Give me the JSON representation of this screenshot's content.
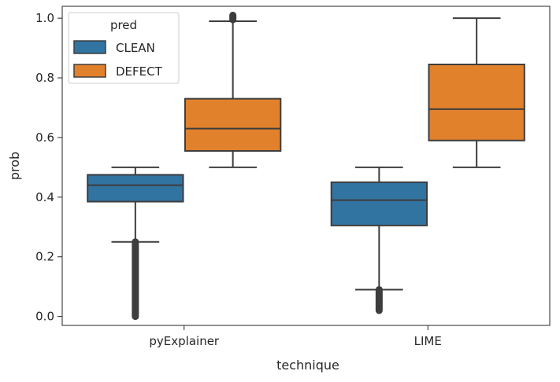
{
  "chart_data": {
    "type": "boxplot",
    "xlabel": "technique",
    "ylabel": "prob",
    "categories": [
      "pyExplainer",
      "LIME"
    ],
    "ylim": [
      -0.03,
      1.04
    ],
    "yticks": [
      0.0,
      0.2,
      0.4,
      0.6,
      0.8,
      1.0
    ],
    "ytick_labels": [
      "0.0",
      "0.2",
      "0.4",
      "0.6",
      "0.8",
      "1.0"
    ],
    "grid": false,
    "legend": {
      "title": "pred",
      "position": "top-left"
    },
    "series": [
      {
        "name": "CLEAN",
        "color": "#3274a1",
        "boxes": [
          {
            "whislo": 0.25,
            "q1": 0.385,
            "med": 0.44,
            "q3": 0.475,
            "whishi": 0.5,
            "outliers": [
              0.0,
              0.25
            ]
          },
          {
            "whislo": 0.09,
            "q1": 0.305,
            "med": 0.39,
            "q3": 0.45,
            "whishi": 0.5,
            "outliers": [
              0.02,
              0.09
            ]
          }
        ]
      },
      {
        "name": "DEFECT",
        "color": "#e1812c",
        "boxes": [
          {
            "whislo": 0.5,
            "q1": 0.555,
            "med": 0.63,
            "q3": 0.73,
            "whishi": 0.99,
            "outliers": [
              0.995,
              1.01
            ]
          },
          {
            "whislo": 0.5,
            "q1": 0.59,
            "med": 0.695,
            "q3": 0.845,
            "whishi": 1.0,
            "outliers": []
          }
        ]
      }
    ]
  }
}
